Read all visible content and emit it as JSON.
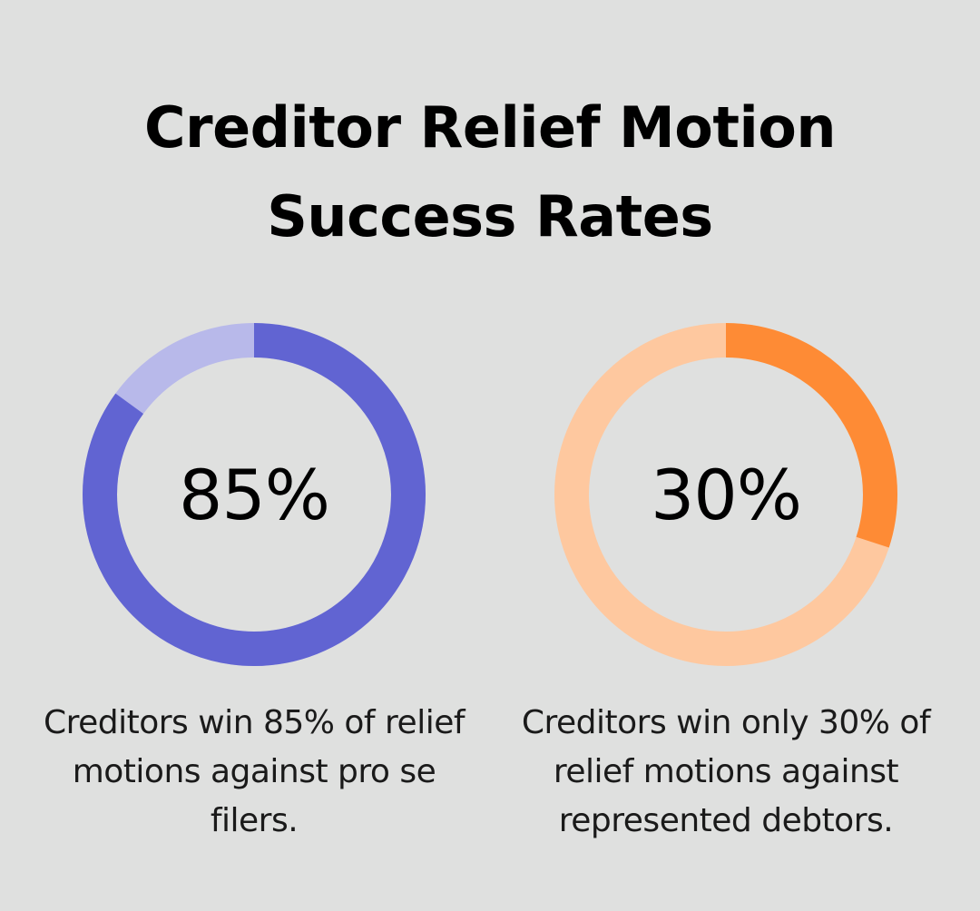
{
  "title": {
    "line1": "Creditor Relief Motion",
    "line2": "Success Rates"
  },
  "chart_data": [
    {
      "type": "pie",
      "variant": "donut",
      "value": 85,
      "max": 100,
      "label": "85%",
      "caption": "Creditors win 85% of relief motions against pro se filers.",
      "colors": {
        "filled": "#6164d2",
        "track": "#b8b9ea"
      }
    },
    {
      "type": "pie",
      "variant": "donut",
      "value": 30,
      "max": 100,
      "label": "30%",
      "caption": "Creditors win only 30% of relief motions against represented debtors.",
      "colors": {
        "filled": "#fe8b35",
        "track": "#fec89f"
      }
    }
  ],
  "colors": {
    "background": "#dfe0df"
  }
}
